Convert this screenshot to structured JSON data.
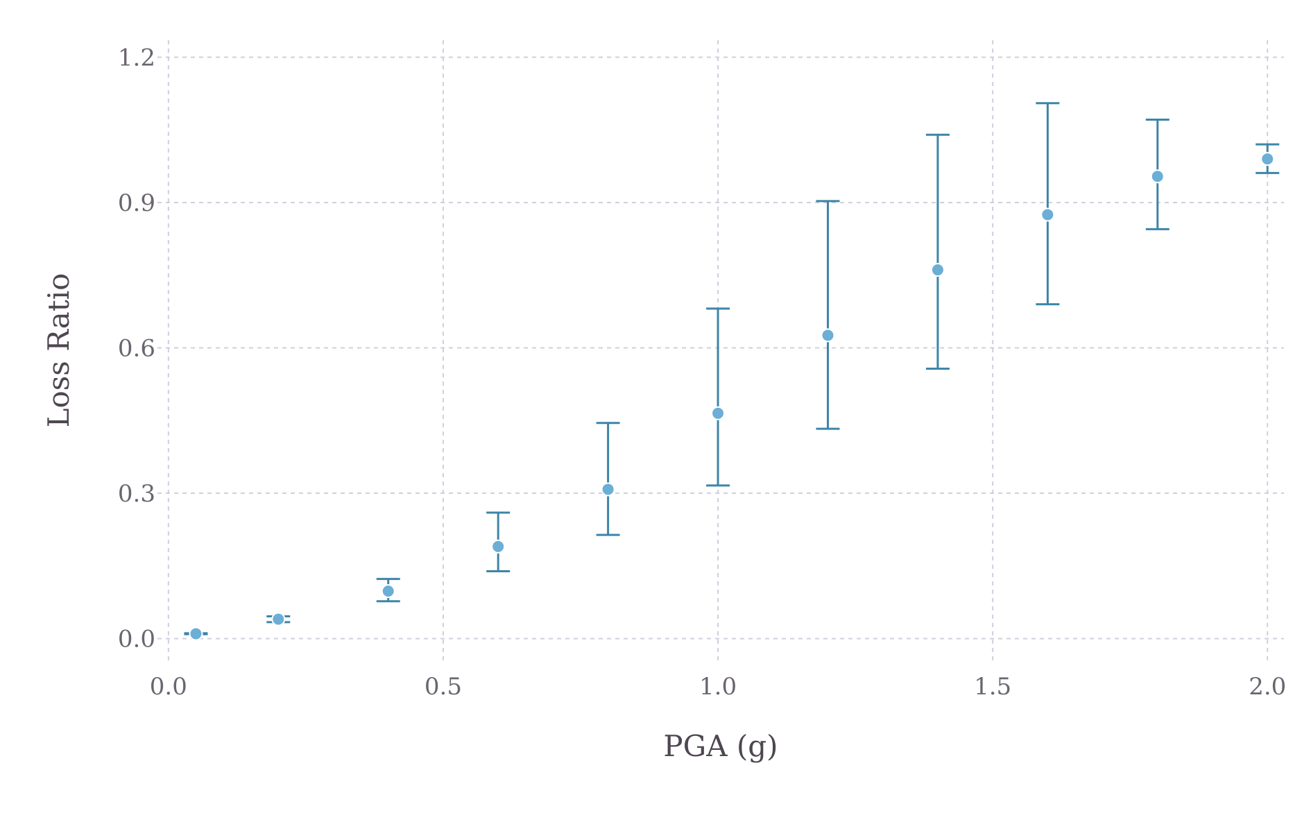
{
  "chart_data": {
    "type": "scatter",
    "title": "",
    "xlabel": "PGA (g)",
    "ylabel": "Loss Ratio",
    "xlim": [
      -0.02,
      2.03
    ],
    "ylim": [
      -0.045,
      1.235
    ],
    "xticks": [
      0.0,
      0.5,
      1.0,
      1.5,
      2.0
    ],
    "xtick_labels": [
      "0.0",
      "0.5",
      "1.0",
      "1.5",
      "2.0"
    ],
    "yticks": [
      0.0,
      0.3,
      0.6,
      0.9,
      1.2
    ],
    "ytick_labels": [
      "0.0",
      "0.3",
      "0.6",
      "0.9",
      "1.2"
    ],
    "grid": true,
    "legend": "none",
    "marker_color": "#6baed6",
    "errorbar_color": "#3d85a8",
    "series": [
      {
        "x": [
          0.05,
          0.2,
          0.4,
          0.6,
          0.8,
          1.0,
          1.2,
          1.4,
          1.6,
          1.8,
          2.0
        ],
        "y": [
          0.01,
          0.04,
          0.098,
          0.19,
          0.308,
          0.465,
          0.626,
          0.761,
          0.875,
          0.954,
          0.99
        ],
        "y_lower": [
          0.009,
          0.034,
          0.077,
          0.139,
          0.214,
          0.316,
          0.433,
          0.557,
          0.69,
          0.845,
          0.961
        ],
        "y_upper": [
          0.011,
          0.046,
          0.123,
          0.26,
          0.445,
          0.681,
          0.903,
          1.04,
          1.105,
          1.071,
          1.02
        ]
      }
    ]
  }
}
